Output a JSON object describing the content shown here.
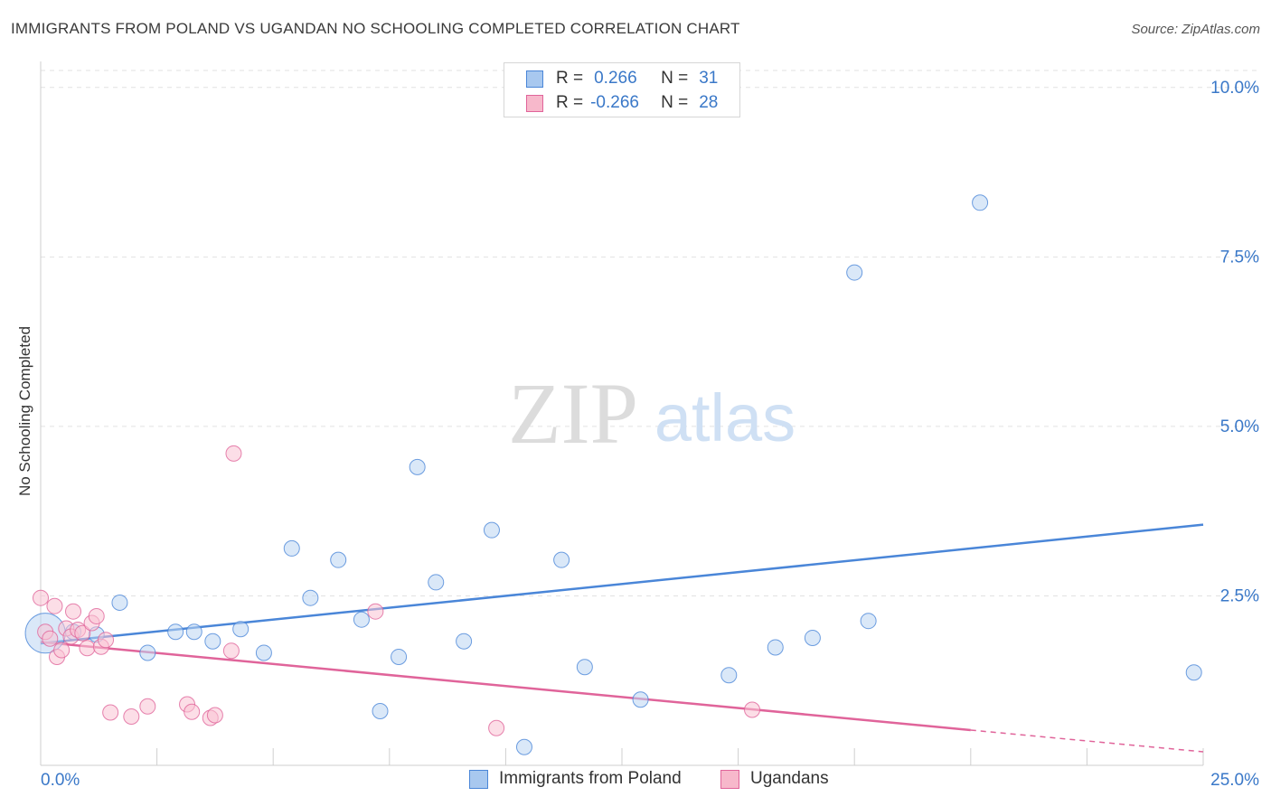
{
  "header": {
    "title": "IMMIGRANTS FROM POLAND VS UGANDAN NO SCHOOLING COMPLETED CORRELATION CHART",
    "source": "Source: ZipAtlas.com"
  },
  "watermark": {
    "zip": "ZIP",
    "atlas": "atlas"
  },
  "legend": {
    "rows": [
      {
        "r_label": "R =",
        "r_value": "0.266",
        "n_label": "N =",
        "n_value": "31",
        "color": "#a8c8ef"
      },
      {
        "r_label": "R =",
        "r_value": "-0.266",
        "n_label": "N =",
        "n_value": "28",
        "color": "#f7b8cb"
      }
    ]
  },
  "bottom_legend": [
    {
      "label": "Immigrants from Poland",
      "color": "#a8c8ef"
    },
    {
      "label": "Ugandans",
      "color": "#f7b8cb"
    }
  ],
  "chart_data": {
    "type": "scatter",
    "title": "IMMIGRANTS FROM POLAND VS UGANDAN NO SCHOOLING COMPLETED CORRELATION CHART",
    "ylabel": "No Schooling Completed",
    "xlim": [
      0,
      25
    ],
    "ylim": [
      0,
      10.25
    ],
    "x_tick_labels": [
      "0.0%",
      "25.0%"
    ],
    "y_ticks": [
      2.5,
      5.0,
      7.5,
      10.0
    ],
    "y_tick_labels": [
      "2.5%",
      "5.0%",
      "7.5%",
      "10.0%"
    ],
    "grid": true,
    "legend_position": "top-center",
    "series": [
      {
        "name": "Immigrants from Poland",
        "color": "#4a86d8",
        "fill": "#bcd5f3",
        "points": [
          [
            0.1,
            1.95,
            2.6
          ],
          [
            0.7,
            1.97,
            1
          ],
          [
            1.2,
            1.93,
            1
          ],
          [
            1.7,
            2.4,
            1
          ],
          [
            2.3,
            1.66,
            1
          ],
          [
            2.9,
            1.97,
            1
          ],
          [
            3.3,
            1.97,
            1
          ],
          [
            3.7,
            1.83,
            1
          ],
          [
            4.3,
            2.01,
            1
          ],
          [
            4.8,
            1.66,
            1
          ],
          [
            5.4,
            3.2,
            1
          ],
          [
            5.8,
            2.47,
            1
          ],
          [
            6.4,
            3.03,
            1
          ],
          [
            6.9,
            2.15,
            1
          ],
          [
            7.3,
            0.8,
            1
          ],
          [
            7.7,
            1.6,
            1
          ],
          [
            8.1,
            4.4,
            1
          ],
          [
            8.5,
            2.7,
            1
          ],
          [
            9.1,
            1.83,
            1
          ],
          [
            9.7,
            3.47,
            1
          ],
          [
            10.4,
            0.27,
            1
          ],
          [
            11.2,
            3.03,
            1
          ],
          [
            11.7,
            1.45,
            1
          ],
          [
            12.9,
            0.97,
            1
          ],
          [
            14.8,
            1.33,
            1
          ],
          [
            15.8,
            1.74,
            1
          ],
          [
            16.6,
            1.88,
            1
          ],
          [
            17.5,
            7.27,
            1
          ],
          [
            17.8,
            2.13,
            1
          ],
          [
            20.2,
            8.3,
            1
          ],
          [
            24.8,
            1.37,
            1
          ]
        ],
        "trend": [
          [
            0,
            1.8
          ],
          [
            25,
            3.55
          ]
        ]
      },
      {
        "name": "Ugandans",
        "color": "#e0649a",
        "fill": "#f9c3d3",
        "points": [
          [
            0.0,
            2.47,
            1
          ],
          [
            0.1,
            1.97,
            1
          ],
          [
            0.2,
            1.87,
            1
          ],
          [
            0.3,
            2.35,
            1
          ],
          [
            0.35,
            1.6,
            1
          ],
          [
            0.45,
            1.7,
            1
          ],
          [
            0.55,
            2.02,
            1
          ],
          [
            0.65,
            1.9,
            1
          ],
          [
            0.7,
            2.27,
            1
          ],
          [
            0.8,
            2.0,
            1
          ],
          [
            0.9,
            1.95,
            1
          ],
          [
            1.0,
            1.73,
            1
          ],
          [
            1.1,
            2.1,
            1
          ],
          [
            1.2,
            2.2,
            1
          ],
          [
            1.3,
            1.75,
            1
          ],
          [
            1.4,
            1.85,
            1
          ],
          [
            1.5,
            0.78,
            1
          ],
          [
            1.95,
            0.72,
            1
          ],
          [
            2.3,
            0.87,
            1
          ],
          [
            3.15,
            0.9,
            1
          ],
          [
            3.25,
            0.79,
            1
          ],
          [
            3.65,
            0.7,
            1
          ],
          [
            3.75,
            0.74,
            1
          ],
          [
            4.1,
            1.69,
            1
          ],
          [
            4.15,
            4.6,
            1
          ],
          [
            7.2,
            2.27,
            1
          ],
          [
            9.8,
            0.55,
            1
          ],
          [
            15.3,
            0.82,
            1
          ]
        ],
        "trend": [
          [
            0,
            1.82
          ],
          [
            20.0,
            0.52
          ]
        ],
        "trend_dashed": [
          [
            20.0,
            0.52
          ],
          [
            25,
            0.2
          ]
        ]
      }
    ]
  }
}
